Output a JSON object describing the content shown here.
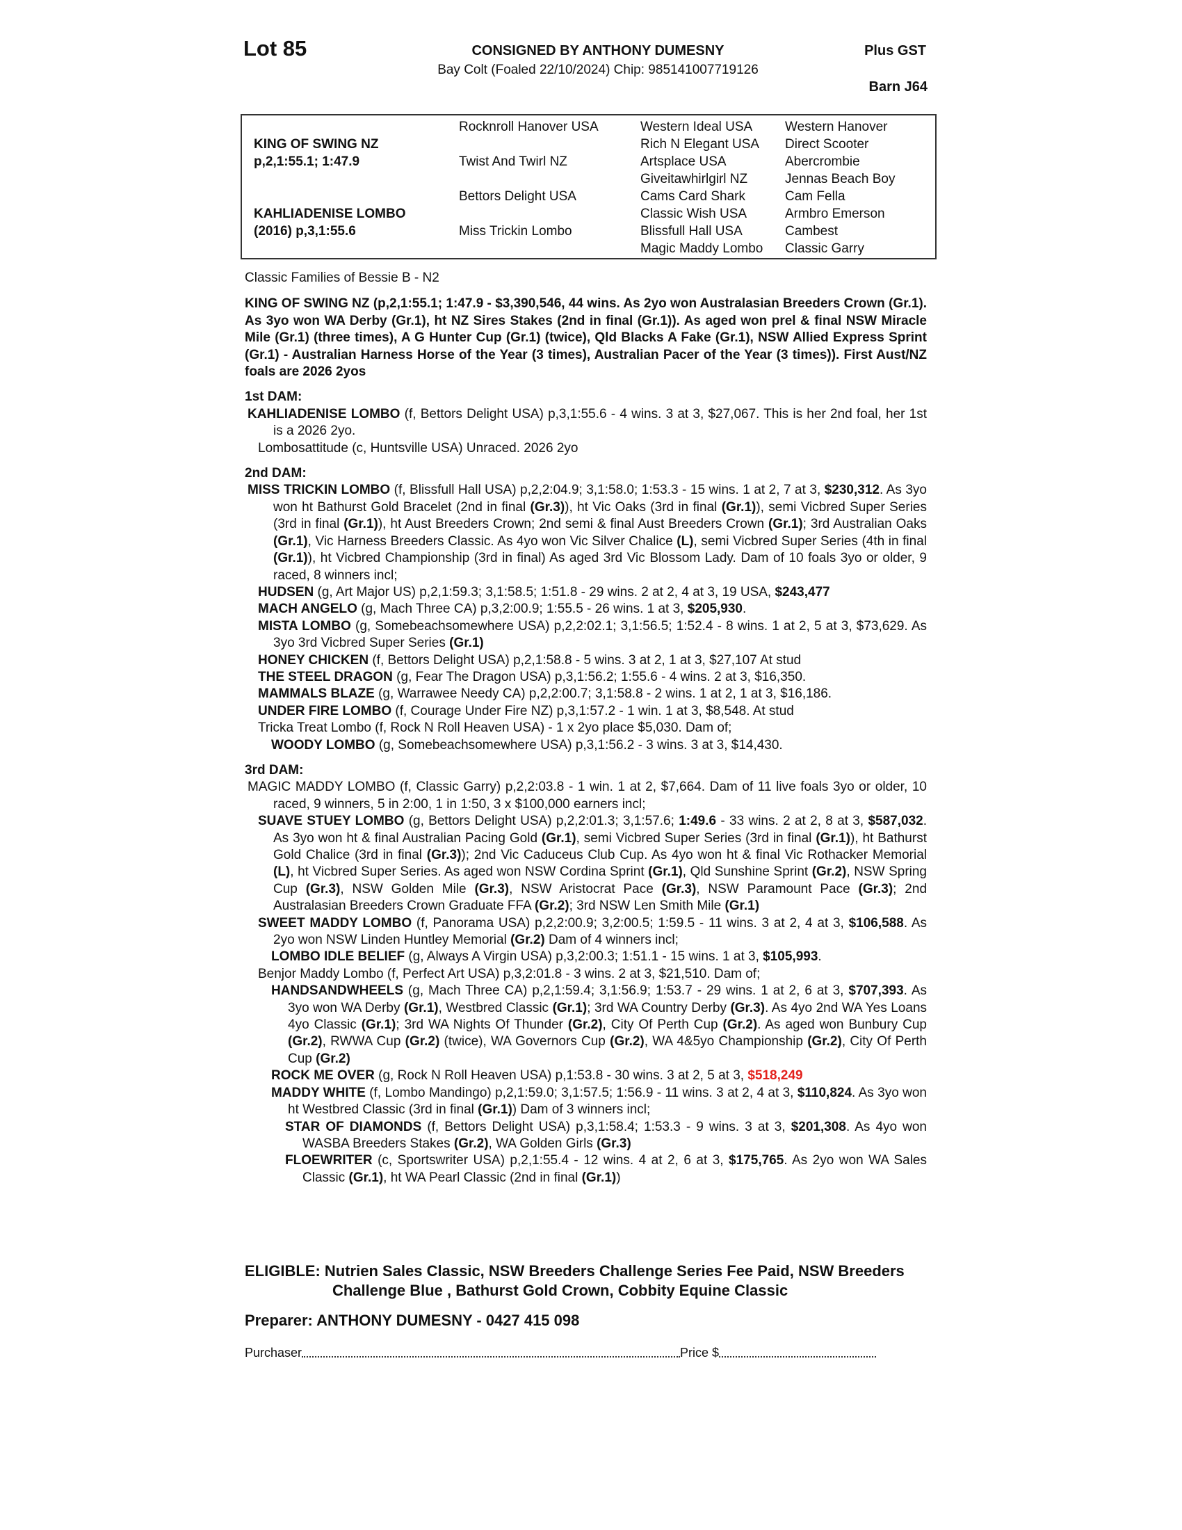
{
  "header": {
    "lot": "Lot 85",
    "consigned": "CONSIGNED BY ANTHONY DUMESNY",
    "description": "Bay Colt (Foaled 22/10/2024) Chip: 985141007719126",
    "gst": "Plus GST",
    "barn": "Barn J64"
  },
  "pedigree": {
    "sire": "KING OF SWING NZ",
    "sire_record": "p,2,1:55.1; 1:47.9",
    "dam": "KAHLIADENISE LOMBO",
    "dam_record": "(2016) p,3,1:55.6",
    "gen2": [
      "Rocknroll Hanover USA",
      "Twist And Twirl NZ",
      "Bettors Delight USA",
      "Miss Trickin Lombo"
    ],
    "gen3": [
      "Western Ideal USA",
      "Rich N Elegant USA",
      "Artsplace USA",
      "Giveitawhirlgirl NZ",
      "Cams Card Shark",
      "Classic Wish USA",
      "Blissfull Hall USA",
      "Magic Maddy Lombo"
    ],
    "gen4": [
      "Western Hanover",
      "Direct Scooter",
      "Abercrombie",
      "Jennas Beach Boy",
      "Cam Fella",
      "Armbro Emerson",
      "Cambest",
      "Classic Garry"
    ]
  },
  "family": "Classic Families of Bessie B - N2",
  "sire_summary": "KING OF SWING NZ (p,2,1:55.1; 1:47.9 - $3,390,546, 44 wins. As 2yo won Australasian Breeders Crown (Gr.1). As 3yo won WA Derby (Gr.1), ht NZ Sires Stakes (2nd in final (Gr.1)). As aged won prel & final NSW Miracle Mile (Gr.1) (three times), A G Hunter Cup (Gr.1) (twice), Qld Blacks A Fake (Gr.1), NSW Allied Express Sprint (Gr.1) - Australian Harness Horse of the Year (3 times), Australian Pacer of the Year (3 times)). First Aust/NZ foals are 2026 2yos",
  "sections": [
    {
      "title": "1st DAM:",
      "entries": [
        {
          "level": 0,
          "runs": [
            {
              "t": "KAHLIADENISE LOMBO",
              "b": true
            },
            {
              "t": " (f, Bettors Delight USA) p,3,1:55.6 - 4 wins. 3 at 3, $27,067. This is her 2nd foal, her 1st is a 2026 2yo."
            }
          ]
        },
        {
          "level": 1,
          "runs": [
            {
              "t": "Lombosattitude (c, Huntsville USA) Unraced. 2026 2yo"
            }
          ]
        }
      ]
    },
    {
      "title": "2nd DAM:",
      "entries": [
        {
          "level": 0,
          "runs": [
            {
              "t": "MISS TRICKIN LOMBO",
              "b": true
            },
            {
              "t": " (f, Blissfull Hall USA) p,2,2:04.9; 3,1:58.0; 1:53.3 - 15 wins. 1 at 2, 7 at 3, "
            },
            {
              "t": "$230,312",
              "b": true
            },
            {
              "t": ". As 3yo won ht Bathurst Gold Bracelet (2nd in final "
            },
            {
              "t": "(Gr.3)",
              "b": true
            },
            {
              "t": "), ht Vic Oaks (3rd in final "
            },
            {
              "t": "(Gr.1)",
              "b": true
            },
            {
              "t": "), semi Vicbred Super Series (3rd in final "
            },
            {
              "t": "(Gr.1)",
              "b": true
            },
            {
              "t": "), ht Aust Breeders Crown; 2nd semi & final Aust Breeders Crown "
            },
            {
              "t": "(Gr.1)",
              "b": true
            },
            {
              "t": "; 3rd Australian Oaks "
            },
            {
              "t": "(Gr.1)",
              "b": true
            },
            {
              "t": ", Vic Harness Breeders Classic. As 4yo won Vic Silver Chalice "
            },
            {
              "t": "(L)",
              "b": true
            },
            {
              "t": ", semi Vicbred Super Series (4th in final "
            },
            {
              "t": "(Gr.1)",
              "b": true
            },
            {
              "t": "), ht Vicbred Championship (3rd in final) As aged 3rd Vic Blossom Lady. Dam of 10 foals 3yo or older, 9 raced, 8 winners incl;"
            }
          ]
        },
        {
          "level": 1,
          "runs": [
            {
              "t": "HUDSEN",
              "b": true
            },
            {
              "t": " (g, Art Major US) p,2,1:59.3; 3,1:58.5; 1:51.8 - 29 wins. 2 at 2, 4 at 3, 19 USA, "
            },
            {
              "t": "$243,477",
              "b": true
            }
          ]
        },
        {
          "level": 1,
          "runs": [
            {
              "t": "MACH ANGELO",
              "b": true
            },
            {
              "t": " (g, Mach Three CA) p,3,2:00.9; 1:55.5 - 26 wins. 1 at 3, "
            },
            {
              "t": "$205,930",
              "b": true
            },
            {
              "t": "."
            }
          ]
        },
        {
          "level": 1,
          "runs": [
            {
              "t": "MISTA LOMBO",
              "b": true
            },
            {
              "t": " (g, Somebeachsomewhere USA) p,2,2:02.1; 3,1:56.5; 1:52.4 - 8 wins. 1 at 2, 5 at 3, $73,629. As 3yo 3rd Vicbred Super Series "
            },
            {
              "t": "(Gr.1)",
              "b": true
            }
          ]
        },
        {
          "level": 1,
          "runs": [
            {
              "t": "HONEY CHICKEN",
              "b": true
            },
            {
              "t": " (f, Bettors Delight USA) p,2,1:58.8 - 5 wins. 3 at 2, 1 at 3, $27,107 At stud"
            }
          ]
        },
        {
          "level": 1,
          "runs": [
            {
              "t": "THE STEEL DRAGON",
              "b": true
            },
            {
              "t": " (g, Fear The Dragon USA) p,3,1:56.2; 1:55.6 - 4 wins. 2 at 3, $16,350."
            }
          ]
        },
        {
          "level": 1,
          "runs": [
            {
              "t": "MAMMALS BLAZE",
              "b": true
            },
            {
              "t": " (g, Warrawee Needy CA) p,2,2:00.7; 3,1:58.8 - 2 wins. 1 at 2, 1 at 3, $16,186."
            }
          ]
        },
        {
          "level": 1,
          "runs": [
            {
              "t": "UNDER FIRE LOMBO",
              "b": true
            },
            {
              "t": " (f, Courage Under Fire NZ) p,3,1:57.2 - 1 win. 1 at 3, $8,548. At stud"
            }
          ]
        },
        {
          "level": 1,
          "runs": [
            {
              "t": "Tricka Treat Lombo (f, Rock N Roll Heaven USA) - 1 x 2yo place $5,030. Dam of;"
            }
          ]
        },
        {
          "level": 2,
          "runs": [
            {
              "t": "WOODY LOMBO",
              "b": true
            },
            {
              "t": " (g, Somebeachsomewhere USA) p,3,1:56.2 - 3 wins. 3 at 3, $14,430."
            }
          ]
        }
      ]
    },
    {
      "title": "3rd DAM:",
      "entries": [
        {
          "level": 0,
          "runs": [
            {
              "t": "MAGIC MADDY LOMBO (f, Classic Garry) p,2,2:03.8 - 1 win. 1 at 2, $7,664. Dam of 11 live foals 3yo or older, 10 raced, 9 winners, 5 in 2:00, 1 in 1:50, 3 x $100,000 earners incl;"
            }
          ]
        },
        {
          "level": 1,
          "runs": [
            {
              "t": "SUAVE STUEY LOMBO",
              "b": true
            },
            {
              "t": " (g, Bettors Delight USA) p,2,2:01.3; 3,1:57.6; "
            },
            {
              "t": "1:49.6",
              "b": true
            },
            {
              "t": " - 33 wins. 2 at 2, 8 at 3, "
            },
            {
              "t": "$587,032",
              "b": true
            },
            {
              "t": ". As 3yo won ht & final Australian Pacing Gold "
            },
            {
              "t": "(Gr.1)",
              "b": true
            },
            {
              "t": ", semi Vicbred Super Series (3rd in final "
            },
            {
              "t": "(Gr.1)",
              "b": true
            },
            {
              "t": "), ht Bathurst Gold Chalice (3rd in final "
            },
            {
              "t": "(Gr.3)",
              "b": true
            },
            {
              "t": "); 2nd Vic Caduceus Club Cup. As 4yo won ht & final Vic Rothacker Memorial "
            },
            {
              "t": "(L)",
              "b": true
            },
            {
              "t": ", ht Vicbred Super Series. As aged won NSW Cordina Sprint "
            },
            {
              "t": "(Gr.1)",
              "b": true
            },
            {
              "t": ", Qld Sunshine Sprint "
            },
            {
              "t": "(Gr.2)",
              "b": true
            },
            {
              "t": ", NSW Spring Cup "
            },
            {
              "t": "(Gr.3)",
              "b": true
            },
            {
              "t": ", NSW Golden Mile "
            },
            {
              "t": "(Gr.3)",
              "b": true
            },
            {
              "t": ", NSW Aristocrat Pace "
            },
            {
              "t": "(Gr.3)",
              "b": true
            },
            {
              "t": ", NSW Paramount Pace "
            },
            {
              "t": "(Gr.3)",
              "b": true
            },
            {
              "t": "; 2nd Australasian Breeders Crown Graduate FFA "
            },
            {
              "t": "(Gr.2)",
              "b": true
            },
            {
              "t": "; 3rd NSW Len Smith Mile "
            },
            {
              "t": "(Gr.1)",
              "b": true
            }
          ]
        },
        {
          "level": 1,
          "runs": [
            {
              "t": "SWEET MADDY LOMBO",
              "b": true
            },
            {
              "t": " (f, Panorama USA) p,2,2:00.9; 3,2:00.5; 1:59.5 - 11 wins. 3 at 2, 4 at 3, "
            },
            {
              "t": "$106,588",
              "b": true
            },
            {
              "t": ". As 2yo won NSW Linden Huntley Memorial "
            },
            {
              "t": "(Gr.2)",
              "b": true
            },
            {
              "t": " Dam of 4 winners incl;"
            }
          ]
        },
        {
          "level": 2,
          "runs": [
            {
              "t": "LOMBO IDLE BELIEF",
              "b": true
            },
            {
              "t": " (g, Always A Virgin USA) p,3,2:00.3; 1:51.1 - 15 wins. 1 at 3, "
            },
            {
              "t": "$105,993",
              "b": true
            },
            {
              "t": "."
            }
          ]
        },
        {
          "level": 1,
          "runs": [
            {
              "t": "Benjor Maddy Lombo (f, Perfect Art USA) p,3,2:01.8 - 3 wins. 2 at 3, $21,510. Dam of;"
            }
          ]
        },
        {
          "level": 2,
          "runs": [
            {
              "t": "HANDSANDWHEELS",
              "b": true
            },
            {
              "t": " (g, Mach Three CA) p,2,1:59.4; 3,1:56.9; 1:53.7 - 29 wins. 1 at 2, 6 at 3, "
            },
            {
              "t": "$707,393",
              "b": true
            },
            {
              "t": ". As 3yo won WA Derby "
            },
            {
              "t": "(Gr.1)",
              "b": true
            },
            {
              "t": ", Westbred Classic "
            },
            {
              "t": "(Gr.1)",
              "b": true
            },
            {
              "t": "; 3rd WA Country Derby "
            },
            {
              "t": "(Gr.3)",
              "b": true
            },
            {
              "t": ". As 4yo 2nd WA Yes Loans 4yo Classic "
            },
            {
              "t": "(Gr.1)",
              "b": true
            },
            {
              "t": "; 3rd WA Nights Of Thunder "
            },
            {
              "t": "(Gr.2)",
              "b": true
            },
            {
              "t": ", City Of Perth Cup "
            },
            {
              "t": "(Gr.2)",
              "b": true
            },
            {
              "t": ". As aged won Bunbury Cup "
            },
            {
              "t": "(Gr.2)",
              "b": true
            },
            {
              "t": ", RWWA Cup "
            },
            {
              "t": "(Gr.2)",
              "b": true
            },
            {
              "t": " (twice), WA Governors Cup "
            },
            {
              "t": "(Gr.2)",
              "b": true
            },
            {
              "t": ", WA 4&5yo Championship "
            },
            {
              "t": "(Gr.2)",
              "b": true
            },
            {
              "t": ", City Of Perth Cup "
            },
            {
              "t": "(Gr.2)",
              "b": true
            }
          ]
        },
        {
          "level": 2,
          "runs": [
            {
              "t": "ROCK ME OVER",
              "b": true
            },
            {
              "t": " (g, Rock N Roll Heaven USA) p,1:53.8 - 30 wins. 3 at 2, 5 at 3, "
            },
            {
              "t": "$518,249",
              "b": true,
              "color": "#e3201b"
            }
          ]
        },
        {
          "level": 2,
          "runs": [
            {
              "t": "MADDY WHITE",
              "b": true
            },
            {
              "t": " (f, Lombo Mandingo) p,2,1:59.0; 3,1:57.5; 1:56.9 - 11 wins. 3 at 2, 4 at 3, "
            },
            {
              "t": "$110,824",
              "b": true
            },
            {
              "t": ". As 3yo won ht Westbred Classic (3rd in final "
            },
            {
              "t": "(Gr.1)",
              "b": true
            },
            {
              "t": ") Dam of 3 winners incl;"
            }
          ]
        },
        {
          "level": 3,
          "runs": [
            {
              "t": "STAR OF DIAMONDS",
              "b": true
            },
            {
              "t": " (f, Bettors Delight USA) p,3,1:58.4; 1:53.3 - 9 wins. 3 at 3, "
            },
            {
              "t": "$201,308",
              "b": true
            },
            {
              "t": ". As 4yo won WASBA Breeders Stakes "
            },
            {
              "t": "(Gr.2)",
              "b": true
            },
            {
              "t": ", WA Golden Girls "
            },
            {
              "t": "(Gr.3)",
              "b": true
            }
          ]
        },
        {
          "level": 3,
          "runs": [
            {
              "t": "FLOEWRITER",
              "b": true
            },
            {
              "t": " (c, Sportswriter USA) p,2,1:55.4 - 12 wins. 4 at 2, 6 at 3, "
            },
            {
              "t": "$175,765",
              "b": true
            },
            {
              "t": ". As 2yo won WA Sales Classic "
            },
            {
              "t": "(Gr.1)",
              "b": true
            },
            {
              "t": ", ht WA Pearl Classic (2nd in final "
            },
            {
              "t": "(Gr.1)",
              "b": true
            },
            {
              "t": ")"
            }
          ]
        }
      ]
    }
  ],
  "eligible": {
    "label": "ELIGIBLE:",
    "text": "Nutrien Sales Classic, NSW Breeders Challenge Series Fee Paid, NSW Breeders Challenge Blue , Bathurst Gold Crown, Cobbity Equine Classic"
  },
  "preparer": "Preparer: ANTHONY DUMESNY - 0427 415 098",
  "purchaser": {
    "label": "Purchaser",
    "price_label": "Price $"
  }
}
